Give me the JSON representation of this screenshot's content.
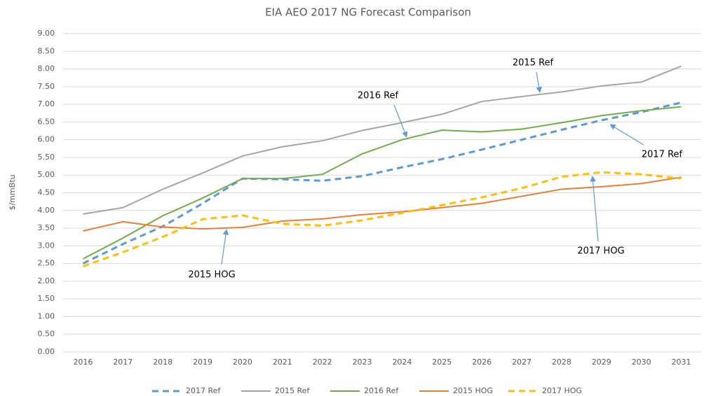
{
  "chart_data": {
    "type": "line",
    "title": "EIA AEO 2017 NG Forecast Comparison",
    "y_label": "$/mmBtu",
    "categories": [
      "2016",
      "2017",
      "2018",
      "2019",
      "2020",
      "2021",
      "2022",
      "2023",
      "2024",
      "2025",
      "2026",
      "2027",
      "2028",
      "2029",
      "2030",
      "2031"
    ],
    "ylim": [
      0,
      9
    ],
    "yticks": [
      {
        "value": 0,
        "label": "0.00"
      },
      {
        "value": 0.5,
        "label": "0.50"
      },
      {
        "value": 1,
        "label": "1.00"
      },
      {
        "value": 1.5,
        "label": "1.50"
      },
      {
        "value": 2,
        "label": "2.00"
      },
      {
        "value": 2.5,
        "label": "2.50"
      },
      {
        "value": 3,
        "label": "3.00"
      },
      {
        "value": 3.5,
        "label": "3.50"
      },
      {
        "value": 4,
        "label": "4.00"
      },
      {
        "value": 4.5,
        "label": "4.50"
      },
      {
        "value": 5,
        "label": "5.00"
      },
      {
        "value": 5.5,
        "label": "5.50"
      },
      {
        "value": 6,
        "label": "6.00"
      },
      {
        "value": 6.5,
        "label": "6.50"
      },
      {
        "value": 7,
        "label": "7.00"
      },
      {
        "value": 7.5,
        "label": "7.50"
      },
      {
        "value": 8,
        "label": "8.00"
      },
      {
        "value": 8.5,
        "label": "8.50"
      },
      {
        "value": 9,
        "label": "9.00"
      }
    ],
    "grid": true,
    "legend": "bottom",
    "series": [
      {
        "name": "2017 Ref",
        "color": "#5b9bd5",
        "line_style": "dashed",
        "values": [
          2.5,
          3.05,
          3.55,
          4.2,
          4.9,
          4.88,
          4.84,
          4.97,
          5.22,
          5.45,
          5.72,
          6.0,
          6.28,
          6.55,
          6.78,
          7.05
        ]
      },
      {
        "name": "2015 Ref",
        "color": "#a5a5a5",
        "line_style": "solid",
        "values": [
          3.9,
          4.08,
          4.6,
          5.06,
          5.54,
          5.8,
          5.97,
          6.26,
          6.48,
          6.72,
          7.08,
          7.22,
          7.35,
          7.52,
          7.63,
          8.08
        ]
      },
      {
        "name": "2016 Ref",
        "color": "#70ad47",
        "line_style": "solid",
        "values": [
          2.63,
          3.22,
          3.85,
          4.35,
          4.9,
          4.9,
          5.02,
          5.6,
          6.0,
          6.27,
          6.22,
          6.3,
          6.48,
          6.68,
          6.82,
          6.93
        ]
      },
      {
        "name": "2015 HOG",
        "color": "#ed7d31",
        "line_style": "solid",
        "values": [
          3.42,
          3.68,
          3.53,
          3.48,
          3.52,
          3.7,
          3.76,
          3.88,
          3.96,
          4.08,
          4.2,
          4.4,
          4.6,
          4.67,
          4.76,
          4.94
        ]
      },
      {
        "name": "2017 HOG",
        "color": "#ffc000",
        "line_style": "dashed",
        "values": [
          2.42,
          2.82,
          3.25,
          3.75,
          3.86,
          3.62,
          3.57,
          3.72,
          3.93,
          4.15,
          4.37,
          4.63,
          4.95,
          5.08,
          5.02,
          4.9
        ]
      }
    ],
    "annotations": [
      "2015 Ref",
      "2016 Ref",
      "2017 Ref",
      "2017 HOG",
      "2015 HOG"
    ]
  }
}
